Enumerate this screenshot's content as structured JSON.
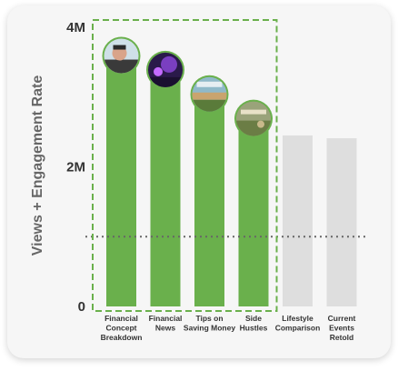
{
  "chart_data": {
    "type": "bar",
    "ylabel": "Views + Engagement Rate",
    "ylim": [
      0,
      4000000
    ],
    "yticks": [
      {
        "value": 0,
        "label": "0"
      },
      {
        "value": 2000000,
        "label": "2M"
      },
      {
        "value": 4000000,
        "label": "4M"
      }
    ],
    "reference_line": {
      "value": 1000000,
      "style": "dotted"
    },
    "highlight_group": {
      "categories": [
        0,
        1,
        2,
        3
      ],
      "style": "dashed-box"
    },
    "categories": [
      {
        "label_lines": [
          "Financial",
          "Concept",
          "Breakdown"
        ],
        "thumbnail_icon": "person-thumbnail-icon"
      },
      {
        "label_lines": [
          "Financial",
          "News"
        ],
        "thumbnail_icon": "purple-scene-thumbnail-icon"
      },
      {
        "label_lines": [
          "Tips on",
          "Saving Money"
        ],
        "thumbnail_icon": "street-thumbnail-icon"
      },
      {
        "label_lines": [
          "Side",
          "Hustles"
        ],
        "thumbnail_icon": "outdoor-thumbnail-icon"
      },
      {
        "label_lines": [
          "Lifestyle",
          "Comparison"
        ],
        "thumbnail_icon": ""
      },
      {
        "label_lines": [
          "Current",
          "Events",
          "Retold"
        ],
        "thumbnail_icon": ""
      }
    ],
    "values": [
      3550000,
      3350000,
      3000000,
      2650000,
      2450000,
      2410000
    ],
    "colors": {
      "highlight": "#6ab04c",
      "muted": "#dedede",
      "thumbnail_ring": "#6ab04c"
    }
  }
}
